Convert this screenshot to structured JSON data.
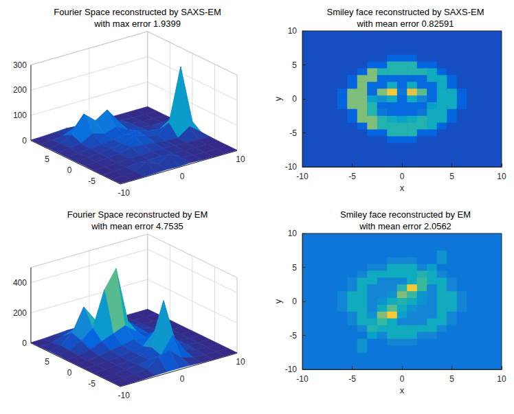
{
  "chart_data": [
    {
      "type": "surface",
      "title": "Fourier Space reconstructed by SAXS-EM\nwith max error 1.9399",
      "x": [
        -10,
        -8,
        -6,
        -4,
        -2,
        0,
        2,
        4,
        6,
        8,
        10
      ],
      "y": [
        -10,
        -8,
        -6,
        -4,
        -2,
        0,
        2,
        4,
        6,
        8,
        10
      ],
      "z": [
        [
          2,
          2,
          2,
          3,
          5,
          3,
          5,
          3,
          2,
          2,
          2
        ],
        [
          2,
          3,
          5,
          30,
          8,
          35,
          8,
          5,
          3,
          2,
          2
        ],
        [
          2,
          3,
          5,
          10,
          8,
          10,
          8,
          5,
          3,
          3,
          2
        ],
        [
          2,
          3,
          5,
          8,
          10,
          12,
          10,
          8,
          5,
          5,
          3
        ],
        [
          3,
          5,
          8,
          12,
          25,
          20,
          15,
          10,
          8,
          40,
          5
        ],
        [
          3,
          5,
          10,
          15,
          20,
          40,
          25,
          15,
          50,
          260,
          30
        ],
        [
          3,
          5,
          10,
          15,
          20,
          25,
          30,
          15,
          10,
          40,
          5
        ],
        [
          3,
          8,
          15,
          40,
          25,
          40,
          15,
          10,
          5,
          5,
          3
        ],
        [
          3,
          10,
          30,
          100,
          60,
          90,
          30,
          10,
          5,
          3,
          2
        ],
        [
          2,
          5,
          10,
          30,
          15,
          30,
          10,
          5,
          3,
          2,
          2
        ],
        [
          2,
          3,
          5,
          8,
          5,
          8,
          5,
          3,
          2,
          2,
          2
        ]
      ],
      "xlim": [
        -10,
        10
      ],
      "ylim": [
        -10,
        10
      ],
      "zlim": [
        0,
        300
      ],
      "xticks": [
        -10,
        0,
        10
      ],
      "yticks": [
        -5,
        0,
        5
      ],
      "zticks": [
        0,
        100,
        200,
        300
      ],
      "grid": true
    },
    {
      "type": "heatmap",
      "title": "Smiley face reconstructed by SAXS-EM\nwith mean error 0.82591",
      "x_label": "x",
      "y_label": "y",
      "x": [
        -7,
        -6,
        -5,
        -4,
        -3,
        -2,
        -1,
        0,
        1,
        2,
        3,
        4,
        5,
        6,
        7
      ],
      "y": [
        7,
        6,
        5,
        4,
        3,
        2,
        1,
        0,
        -1,
        -2,
        -3,
        -4,
        -5,
        -6,
        -7
      ],
      "z": [
        [
          0.08,
          0.08,
          0.08,
          0.08,
          0.08,
          0.08,
          0.08,
          0.08,
          0.08,
          0.08,
          0.08,
          0.08,
          0.08,
          0.08,
          0.08
        ],
        [
          0.08,
          0.08,
          0.08,
          0.08,
          0.08,
          0.08,
          0.13,
          0.13,
          0.13,
          0.08,
          0.08,
          0.08,
          0.08,
          0.08,
          0.08
        ],
        [
          0.08,
          0.08,
          0.08,
          0.08,
          0.13,
          0.13,
          0.45,
          0.45,
          0.45,
          0.13,
          0.13,
          0.08,
          0.08,
          0.08,
          0.08
        ],
        [
          0.08,
          0.08,
          0.08,
          0.13,
          0.6,
          0.45,
          0.45,
          0.45,
          0.45,
          0.45,
          0.4,
          0.13,
          0.08,
          0.08,
          0.08
        ],
        [
          0.08,
          0.08,
          0.13,
          0.6,
          0.6,
          0.15,
          0.15,
          0.15,
          0.15,
          0.15,
          0.4,
          0.4,
          0.13,
          0.08,
          0.08
        ],
        [
          0.08,
          0.08,
          0.13,
          0.6,
          0.15,
          0.15,
          0.4,
          0.15,
          0.4,
          0.15,
          0.15,
          0.4,
          0.13,
          0.08,
          0.08
        ],
        [
          0.08,
          0.13,
          0.6,
          0.6,
          0.15,
          0.6,
          0.85,
          0.2,
          0.8,
          0.55,
          0.15,
          0.4,
          0.4,
          0.13,
          0.08
        ],
        [
          0.08,
          0.13,
          0.6,
          0.6,
          0.35,
          0.3,
          0.4,
          0.15,
          0.4,
          0.25,
          0.15,
          0.4,
          0.4,
          0.13,
          0.08
        ],
        [
          0.08,
          0.13,
          0.6,
          0.6,
          0.45,
          0.15,
          0.15,
          0.15,
          0.15,
          0.15,
          0.35,
          0.4,
          0.4,
          0.13,
          0.08
        ],
        [
          0.08,
          0.08,
          0.13,
          0.6,
          0.45,
          0.2,
          0.15,
          0.15,
          0.15,
          0.2,
          0.4,
          0.4,
          0.13,
          0.08,
          0.08
        ],
        [
          0.08,
          0.08,
          0.13,
          0.6,
          0.6,
          0.45,
          0.4,
          0.35,
          0.4,
          0.45,
          0.4,
          0.4,
          0.13,
          0.08,
          0.08
        ],
        [
          0.08,
          0.08,
          0.08,
          0.13,
          0.6,
          0.45,
          0.45,
          0.45,
          0.45,
          0.45,
          0.4,
          0.13,
          0.08,
          0.08,
          0.08
        ],
        [
          0.08,
          0.08,
          0.08,
          0.08,
          0.13,
          0.13,
          0.45,
          0.45,
          0.45,
          0.13,
          0.13,
          0.08,
          0.08,
          0.08,
          0.08
        ],
        [
          0.08,
          0.08,
          0.08,
          0.08,
          0.08,
          0.08,
          0.13,
          0.13,
          0.13,
          0.08,
          0.08,
          0.08,
          0.08,
          0.08,
          0.08
        ],
        [
          0.08,
          0.08,
          0.08,
          0.08,
          0.08,
          0.08,
          0.08,
          0.08,
          0.08,
          0.08,
          0.08,
          0.08,
          0.08,
          0.08,
          0.08
        ]
      ],
      "xlim": [
        -10,
        10
      ],
      "ylim": [
        -10,
        10
      ],
      "xticks": [
        -10,
        -5,
        0,
        5,
        10
      ],
      "yticks": [
        -10,
        -5,
        0,
        5,
        10
      ],
      "grid": false
    },
    {
      "type": "surface",
      "title": "Fourier Space reconstructed by EM\nwith mean error 4.7535",
      "x": [
        -10,
        -8,
        -6,
        -4,
        -2,
        0,
        2,
        4,
        6,
        8,
        10
      ],
      "y": [
        -10,
        -8,
        -6,
        -4,
        -2,
        0,
        2,
        4,
        6,
        8,
        10
      ],
      "z": [
        [
          3,
          3,
          5,
          8,
          10,
          10,
          8,
          5,
          3,
          3,
          3
        ],
        [
          3,
          5,
          10,
          20,
          80,
          100,
          30,
          10,
          5,
          3,
          3
        ],
        [
          3,
          5,
          10,
          20,
          30,
          40,
          150,
          30,
          10,
          5,
          3
        ],
        [
          3,
          5,
          10,
          15,
          30,
          60,
          350,
          60,
          15,
          5,
          3
        ],
        [
          3,
          5,
          10,
          20,
          30,
          40,
          120,
          40,
          15,
          5,
          3
        ],
        [
          3,
          5,
          15,
          30,
          40,
          60,
          50,
          30,
          10,
          5,
          3
        ],
        [
          3,
          8,
          30,
          60,
          90,
          120,
          60,
          25,
          10,
          5,
          3
        ],
        [
          5,
          15,
          60,
          120,
          350,
          470,
          100,
          30,
          10,
          5,
          3
        ],
        [
          5,
          20,
          80,
          230,
          120,
          300,
          60,
          20,
          8,
          5,
          3
        ],
        [
          3,
          10,
          30,
          60,
          40,
          60,
          20,
          10,
          5,
          3,
          3
        ],
        [
          3,
          5,
          10,
          15,
          10,
          15,
          8,
          5,
          3,
          3,
          3
        ]
      ],
      "xlim": [
        -10,
        10
      ],
      "ylim": [
        -10,
        10
      ],
      "zlim": [
        0,
        500
      ],
      "xticks": [
        -10,
        0,
        10
      ],
      "yticks": [
        -5,
        0,
        5
      ],
      "zticks": [
        0,
        200,
        400
      ],
      "grid": true
    },
    {
      "type": "heatmap",
      "title": "Smiley face reconstructed by EM\nwith mean error 2.0562",
      "x_label": "x",
      "y_label": "y",
      "x": [
        -7,
        -6,
        -5,
        -4,
        -3,
        -2,
        -1,
        0,
        1,
        2,
        3,
        4,
        5,
        6,
        7
      ],
      "y": [
        7,
        6,
        5,
        4,
        3,
        2,
        1,
        0,
        -1,
        -2,
        -3,
        -4,
        -5,
        -6,
        -7
      ],
      "z": [
        [
          0.2,
          0.2,
          0.2,
          0.2,
          0.2,
          0.2,
          0.2,
          0.2,
          0.2,
          0.2,
          0.2,
          0.3,
          0.2,
          0.2,
          0.2
        ],
        [
          0.2,
          0.2,
          0.2,
          0.2,
          0.2,
          0.2,
          0.25,
          0.25,
          0.25,
          0.2,
          0.2,
          0.3,
          0.2,
          0.2,
          0.2
        ],
        [
          0.2,
          0.2,
          0.2,
          0.2,
          0.25,
          0.25,
          0.4,
          0.4,
          0.4,
          0.25,
          0.35,
          0.2,
          0.2,
          0.2,
          0.2
        ],
        [
          0.2,
          0.2,
          0.2,
          0.25,
          0.4,
          0.4,
          0.4,
          0.4,
          0.4,
          0.45,
          0.4,
          0.25,
          0.2,
          0.2,
          0.2
        ],
        [
          0.2,
          0.2,
          0.25,
          0.4,
          0.4,
          0.25,
          0.25,
          0.25,
          0.4,
          0.5,
          0.4,
          0.4,
          0.25,
          0.2,
          0.2
        ],
        [
          0.2,
          0.2,
          0.25,
          0.4,
          0.25,
          0.25,
          0.25,
          0.45,
          0.85,
          0.5,
          0.25,
          0.4,
          0.25,
          0.2,
          0.2
        ],
        [
          0.2,
          0.25,
          0.4,
          0.4,
          0.25,
          0.25,
          0.3,
          0.6,
          0.5,
          0.3,
          0.25,
          0.4,
          0.4,
          0.25,
          0.2
        ],
        [
          0.2,
          0.25,
          0.4,
          0.4,
          0.25,
          0.3,
          0.4,
          0.45,
          0.4,
          0.3,
          0.25,
          0.4,
          0.4,
          0.25,
          0.2
        ],
        [
          0.2,
          0.25,
          0.4,
          0.4,
          0.25,
          0.4,
          0.55,
          0.4,
          0.3,
          0.25,
          0.25,
          0.4,
          0.4,
          0.25,
          0.2
        ],
        [
          0.2,
          0.2,
          0.25,
          0.4,
          0.3,
          0.6,
          0.85,
          0.35,
          0.25,
          0.25,
          0.25,
          0.4,
          0.25,
          0.2,
          0.2
        ],
        [
          0.2,
          0.2,
          0.25,
          0.4,
          0.4,
          0.5,
          0.4,
          0.25,
          0.25,
          0.25,
          0.4,
          0.4,
          0.25,
          0.2,
          0.2
        ],
        [
          0.2,
          0.2,
          0.2,
          0.25,
          0.45,
          0.4,
          0.4,
          0.4,
          0.4,
          0.4,
          0.4,
          0.25,
          0.2,
          0.2,
          0.2
        ],
        [
          0.2,
          0.2,
          0.2,
          0.2,
          0.35,
          0.25,
          0.4,
          0.4,
          0.4,
          0.25,
          0.25,
          0.2,
          0.2,
          0.2,
          0.2
        ],
        [
          0.2,
          0.2,
          0.2,
          0.3,
          0.2,
          0.2,
          0.25,
          0.25,
          0.25,
          0.2,
          0.2,
          0.2,
          0.2,
          0.2,
          0.2
        ],
        [
          0.2,
          0.2,
          0.2,
          0.3,
          0.2,
          0.2,
          0.2,
          0.2,
          0.2,
          0.2,
          0.2,
          0.2,
          0.2,
          0.2,
          0.2
        ]
      ],
      "xlim": [
        -10,
        10
      ],
      "ylim": [
        -10,
        10
      ],
      "xticks": [
        -10,
        -5,
        0,
        5,
        10
      ],
      "yticks": [
        -10,
        -5,
        0,
        5,
        10
      ],
      "grid": false
    }
  ]
}
